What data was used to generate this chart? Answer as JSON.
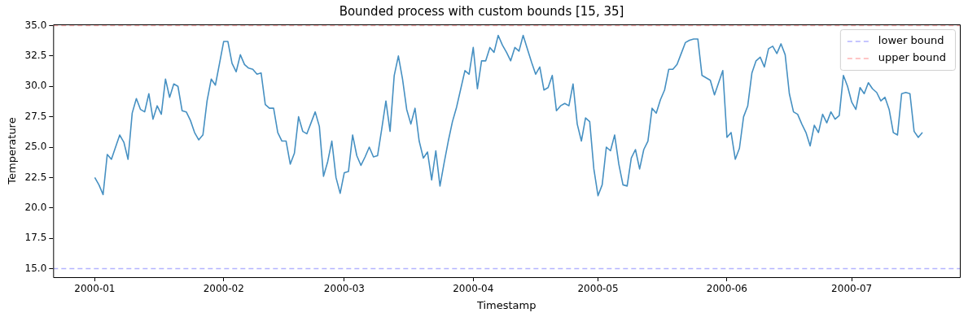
{
  "chart_data": {
    "type": "line",
    "title": "Bounded process with custom bounds [15, 35]",
    "xlabel": "Timestamp",
    "ylabel": "Temperature",
    "x": [
      "2000-01-01",
      "2000-01-02",
      "2000-01-03",
      "2000-01-04",
      "2000-01-05",
      "2000-01-06",
      "2000-01-07",
      "2000-01-08",
      "2000-01-09",
      "2000-01-10",
      "2000-01-11",
      "2000-01-12",
      "2000-01-13",
      "2000-01-14",
      "2000-01-15",
      "2000-01-16",
      "2000-01-17",
      "2000-01-18",
      "2000-01-19",
      "2000-01-20",
      "2000-01-21",
      "2000-01-22",
      "2000-01-23",
      "2000-01-24",
      "2000-01-25",
      "2000-01-26",
      "2000-01-27",
      "2000-01-28",
      "2000-01-29",
      "2000-01-30",
      "2000-01-31",
      "2000-02-01",
      "2000-02-02",
      "2000-02-03",
      "2000-02-04",
      "2000-02-05",
      "2000-02-06",
      "2000-02-07",
      "2000-02-08",
      "2000-02-09",
      "2000-02-10",
      "2000-02-11",
      "2000-02-12",
      "2000-02-13",
      "2000-02-14",
      "2000-02-15",
      "2000-02-16",
      "2000-02-17",
      "2000-02-18",
      "2000-02-19",
      "2000-02-20",
      "2000-02-21",
      "2000-02-22",
      "2000-02-23",
      "2000-02-24",
      "2000-02-25",
      "2000-02-26",
      "2000-02-27",
      "2000-02-28",
      "2000-02-29",
      "2000-03-01",
      "2000-03-02",
      "2000-03-03",
      "2000-03-04",
      "2000-03-05",
      "2000-03-06",
      "2000-03-07",
      "2000-03-08",
      "2000-03-09",
      "2000-03-10",
      "2000-03-11",
      "2000-03-12",
      "2000-03-13",
      "2000-03-14",
      "2000-03-15",
      "2000-03-16",
      "2000-03-17",
      "2000-03-18",
      "2000-03-19",
      "2000-03-20",
      "2000-03-21",
      "2000-03-22",
      "2000-03-23",
      "2000-03-24",
      "2000-03-25",
      "2000-03-26",
      "2000-03-27",
      "2000-03-28",
      "2000-03-29",
      "2000-03-30",
      "2000-03-31",
      "2000-04-01",
      "2000-04-02",
      "2000-04-03",
      "2000-04-04",
      "2000-04-05",
      "2000-04-06",
      "2000-04-07",
      "2000-04-08",
      "2000-04-09",
      "2000-04-10",
      "2000-04-11",
      "2000-04-12",
      "2000-04-13",
      "2000-04-14",
      "2000-04-15",
      "2000-04-16",
      "2000-04-17",
      "2000-04-18",
      "2000-04-19",
      "2000-04-20",
      "2000-04-21",
      "2000-04-22",
      "2000-04-23",
      "2000-04-24",
      "2000-04-25",
      "2000-04-26",
      "2000-04-27",
      "2000-04-28",
      "2000-04-29",
      "2000-04-30",
      "2000-05-01",
      "2000-05-02",
      "2000-05-03",
      "2000-05-04",
      "2000-05-05",
      "2000-05-06",
      "2000-05-07",
      "2000-05-08",
      "2000-05-09",
      "2000-05-10",
      "2000-05-11",
      "2000-05-12",
      "2000-05-13",
      "2000-05-14",
      "2000-05-15",
      "2000-05-16",
      "2000-05-17",
      "2000-05-18",
      "2000-05-19",
      "2000-05-20",
      "2000-05-21",
      "2000-05-22",
      "2000-05-23",
      "2000-05-24",
      "2000-05-25",
      "2000-05-26",
      "2000-05-27",
      "2000-05-28",
      "2000-05-29",
      "2000-05-30",
      "2000-05-31",
      "2000-06-01",
      "2000-06-02",
      "2000-06-03",
      "2000-06-04",
      "2000-06-05",
      "2000-06-06",
      "2000-06-07",
      "2000-06-08",
      "2000-06-09",
      "2000-06-10",
      "2000-06-11",
      "2000-06-12",
      "2000-06-13",
      "2000-06-14",
      "2000-06-15",
      "2000-06-16",
      "2000-06-17",
      "2000-06-18",
      "2000-06-19",
      "2000-06-20",
      "2000-06-21",
      "2000-06-22",
      "2000-06-23",
      "2000-06-24",
      "2000-06-25",
      "2000-06-26",
      "2000-06-27",
      "2000-06-28",
      "2000-06-29",
      "2000-06-30",
      "2000-07-01",
      "2000-07-02",
      "2000-07-03",
      "2000-07-04",
      "2000-07-05",
      "2000-07-06",
      "2000-07-07",
      "2000-07-08",
      "2000-07-09",
      "2000-07-10",
      "2000-07-11",
      "2000-07-12",
      "2000-07-13",
      "2000-07-14",
      "2000-07-15",
      "2000-07-16",
      "2000-07-17",
      "2000-07-18"
    ],
    "series": [
      {
        "color": "#4690c2",
        "values": [
          22.5,
          21.9,
          21.1,
          24.4,
          24.0,
          25.0,
          26.0,
          25.4,
          24.0,
          27.8,
          29.0,
          28.1,
          27.9,
          29.4,
          27.3,
          28.4,
          27.7,
          30.6,
          29.1,
          30.2,
          30.0,
          28.0,
          27.9,
          27.2,
          26.2,
          25.6,
          26.0,
          28.8,
          30.6,
          30.1,
          31.9,
          33.7,
          33.7,
          31.9,
          31.2,
          32.6,
          31.8,
          31.5,
          31.4,
          31.0,
          31.1,
          28.5,
          28.2,
          28.2,
          26.2,
          25.5,
          25.5,
          23.6,
          24.5,
          27.5,
          26.3,
          26.1,
          27.0,
          27.9,
          26.7,
          22.6,
          23.8,
          25.5,
          22.5,
          21.2,
          22.9,
          23.0,
          26.0,
          24.3,
          23.5,
          24.2,
          25.0,
          24.2,
          24.3,
          26.5,
          28.8,
          26.3,
          30.9,
          32.5,
          30.6,
          28.1,
          26.9,
          28.2,
          25.5,
          24.1,
          24.6,
          22.3,
          24.7,
          21.8,
          23.7,
          25.5,
          27.1,
          28.3,
          29.8,
          31.3,
          31.0,
          33.2,
          29.8,
          32.1,
          32.1,
          33.2,
          32.8,
          34.2,
          33.4,
          32.8,
          32.1,
          33.2,
          32.9,
          34.2,
          33.1,
          32.0,
          31.0,
          31.6,
          29.7,
          29.9,
          30.9,
          28.0,
          28.4,
          28.6,
          28.4,
          30.2,
          26.9,
          25.5,
          27.4,
          27.1,
          23.2,
          21.0,
          21.9,
          25.0,
          24.7,
          26.0,
          23.6,
          21.9,
          21.8,
          24.1,
          24.8,
          23.2,
          24.8,
          25.5,
          28.2,
          27.8,
          28.9,
          29.7,
          31.4,
          31.4,
          31.8,
          32.7,
          33.6,
          33.8,
          33.9,
          33.9,
          30.9,
          30.7,
          30.5,
          29.3,
          30.3,
          31.3,
          25.8,
          26.2,
          24.0,
          24.9,
          27.5,
          28.4,
          31.1,
          32.1,
          32.4,
          31.6,
          33.1,
          33.3,
          32.7,
          33.5,
          32.6,
          29.4,
          27.9,
          27.7,
          26.9,
          26.2,
          25.1,
          26.8,
          26.2,
          27.7,
          27.0,
          27.9,
          27.3,
          27.6,
          30.9,
          30.0,
          28.7,
          28.1,
          29.9,
          29.4,
          30.3,
          29.8,
          29.5,
          28.8,
          29.1,
          28.1,
          26.2,
          26.0,
          29.4,
          29.5,
          29.4,
          26.3,
          25.8,
          26.2
        ]
      }
    ],
    "ref_lines": [
      {
        "axis": "y",
        "value": 15,
        "label": "lower bound",
        "color": "#b3b3ff",
        "line_style": "dashed"
      },
      {
        "axis": "y",
        "value": 35,
        "label": "upper bound",
        "color": "#ffb3b3",
        "line_style": "dashed"
      }
    ],
    "xlim": [
      "1999-12-22",
      "2000-07-27"
    ],
    "xticks": [
      "2000-01",
      "2000-02",
      "2000-03",
      "2000-04",
      "2000-05",
      "2000-06",
      "2000-07"
    ],
    "ylim": [
      14.3,
      35.1
    ],
    "yticks": [
      {
        "value": 15,
        "label": "15.0"
      },
      {
        "value": 17.5,
        "label": "17.5"
      },
      {
        "value": 20,
        "label": "20.0"
      },
      {
        "value": 22.5,
        "label": "22.5"
      },
      {
        "value": 25,
        "label": "25.0"
      },
      {
        "value": 27.5,
        "label": "27.5"
      },
      {
        "value": 30,
        "label": "30.0"
      },
      {
        "value": 32.5,
        "label": "32.5"
      },
      {
        "value": 35,
        "label": "35.0"
      }
    ],
    "legend": "top right"
  }
}
